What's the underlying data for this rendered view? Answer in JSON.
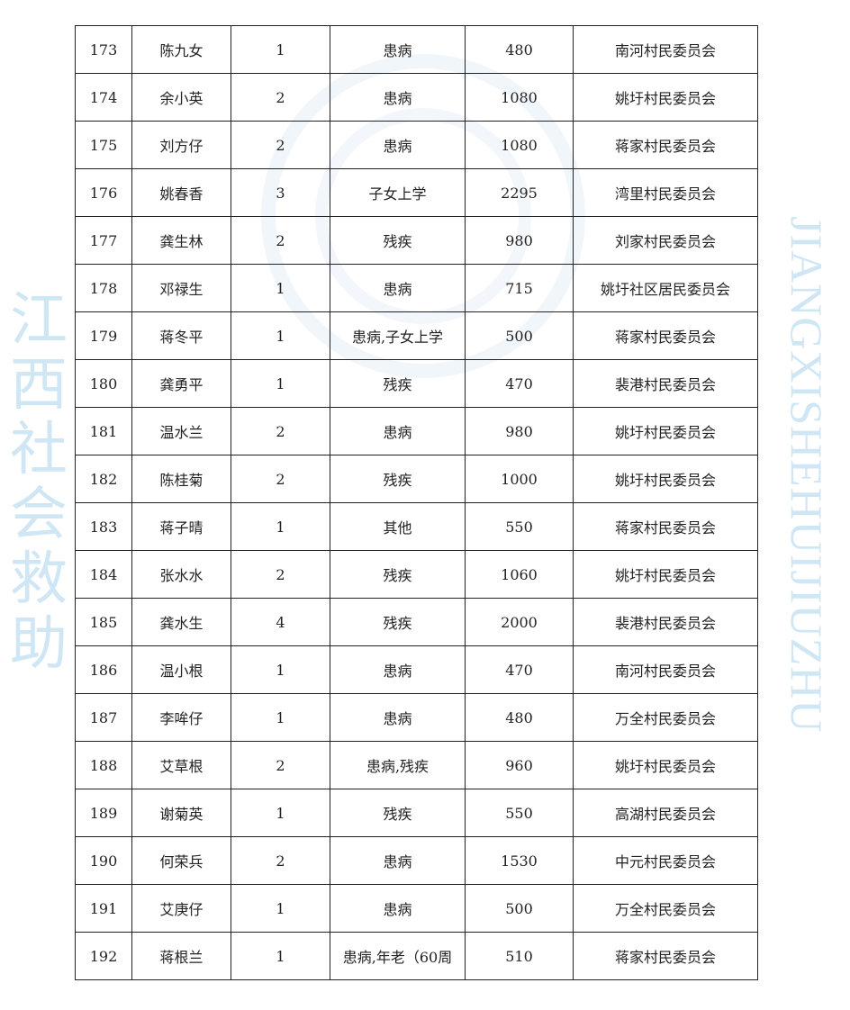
{
  "rows": [
    [
      "173",
      "陈九女",
      "1",
      "患病",
      "480",
      "南河村民委员会"
    ],
    [
      "174",
      "余小英",
      "2",
      "患病",
      "1080",
      "姚圩村民委员会"
    ],
    [
      "175",
      "刘方仔",
      "2",
      "患病",
      "1080",
      "蒋家村民委员会"
    ],
    [
      "176",
      "姚春香",
      "3",
      "子女上学",
      "2295",
      "湾里村民委员会"
    ],
    [
      "177",
      "龚生林",
      "2",
      "残疾",
      "980",
      "刘家村民委员会"
    ],
    [
      "178",
      "邓禄生",
      "1",
      "患病",
      "715",
      "姚圩社区居民委员会"
    ],
    [
      "179",
      "蒋冬平",
      "1",
      "患病,子女上学",
      "500",
      "蒋家村民委员会"
    ],
    [
      "180",
      "龚勇平",
      "1",
      "残疾",
      "470",
      "裴港村民委员会"
    ],
    [
      "181",
      "温水兰",
      "2",
      "患病",
      "980",
      "姚圩村民委员会"
    ],
    [
      "182",
      "陈桂菊",
      "2",
      "残疾",
      "1000",
      "姚圩村民委员会"
    ],
    [
      "183",
      "蒋子晴",
      "1",
      "其他",
      "550",
      "蒋家村民委员会"
    ],
    [
      "184",
      "张水水",
      "2",
      "残疾",
      "1060",
      "姚圩村民委员会"
    ],
    [
      "185",
      "龚水生",
      "4",
      "残疾",
      "2000",
      "裴港村民委员会"
    ],
    [
      "186",
      "温小根",
      "1",
      "患病",
      "470",
      "南河村民委员会"
    ],
    [
      "187",
      "李哞仔",
      "1",
      "患病",
      "480",
      "万全村民委员会"
    ],
    [
      "188",
      "艾草根",
      "2",
      "患病,残疾",
      "960",
      "姚圩村民委员会"
    ],
    [
      "189",
      "谢菊英",
      "1",
      "残疾",
      "550",
      "高湖村民委员会"
    ],
    [
      "190",
      "何荣兵",
      "2",
      "患病",
      "1530",
      "中元村民委员会"
    ],
    [
      "191",
      "艾庚仔",
      "1",
      "患病",
      "500",
      "万全村民委员会"
    ],
    [
      "192",
      "蒋根兰",
      "1",
      "患病,年老（60周",
      "510",
      "蒋家村民委员会"
    ]
  ],
  "watermark": {
    "text_en": "JIANGXISHEHUIJIUZHU",
    "text_cn": [
      "江",
      "西",
      "社",
      "会",
      "救",
      "助"
    ],
    "color": "#cfe6f5"
  }
}
